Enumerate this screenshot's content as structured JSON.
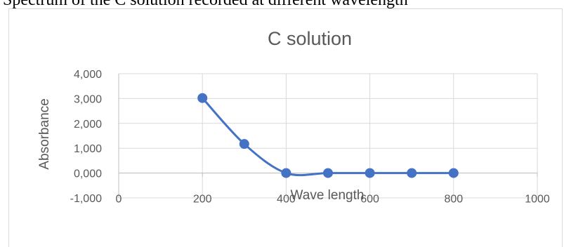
{
  "header_text": "Spectrum of the C solution recorded at different wavelength",
  "chart_data": {
    "type": "line",
    "title": "C solution",
    "xlabel": "Wave length",
    "ylabel": "Absorbance",
    "x": [
      200,
      300,
      400,
      500,
      600,
      700,
      800
    ],
    "series": [
      {
        "values": [
          3.02,
          1.17,
          0.0,
          0.0,
          0.0,
          0.0,
          0.0
        ]
      }
    ],
    "xlim": [
      0,
      1000
    ],
    "ylim": [
      -1.0,
      4.0
    ],
    "xticks": [
      0,
      200,
      400,
      600,
      800,
      1000
    ],
    "xtick_labels": [
      "0",
      "200",
      "400",
      "600",
      "800",
      "1000"
    ],
    "yticks": [
      -1,
      0,
      1,
      2,
      3,
      4
    ],
    "ytick_labels": [
      "-1,000",
      "0,000",
      "1,000",
      "2,000",
      "3,000",
      "4,000"
    ],
    "grid": true,
    "colors": {
      "series": "#4472c4",
      "grid": "#d9d9d9",
      "axis": "#bfbfbf",
      "text": "#595959"
    }
  }
}
